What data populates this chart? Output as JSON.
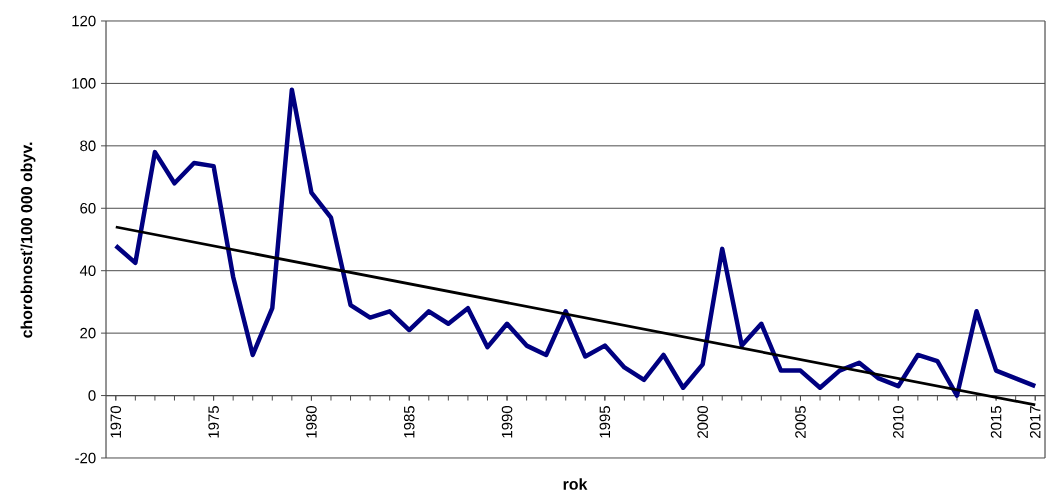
{
  "chart_data": {
    "type": "line",
    "xlabel": "rok",
    "ylabel": "chorobnosť/100 000 obyv.",
    "x": [
      1970,
      1971,
      1972,
      1973,
      1974,
      1975,
      1976,
      1977,
      1978,
      1979,
      1980,
      1981,
      1982,
      1983,
      1984,
      1985,
      1986,
      1987,
      1988,
      1989,
      1990,
      1991,
      1992,
      1993,
      1994,
      1995,
      1996,
      1997,
      1998,
      1999,
      2000,
      2001,
      2002,
      2003,
      2004,
      2005,
      2006,
      2007,
      2008,
      2009,
      2010,
      2011,
      2012,
      2013,
      2014,
      2015,
      2016,
      2017
    ],
    "series": [
      {
        "color": "#000080",
        "values": [
          48,
          42.5,
          78,
          68,
          74.5,
          73.5,
          38,
          13,
          28,
          98,
          65,
          57,
          29,
          25,
          27,
          21,
          27,
          23,
          28,
          15.5,
          23,
          16,
          13,
          27,
          12.5,
          16,
          9,
          5,
          13,
          2.5,
          10,
          47,
          16,
          23,
          8,
          8,
          2.5,
          8,
          10.5,
          5.5,
          3,
          13,
          11,
          0,
          27,
          8,
          5.5,
          3
        ]
      },
      {
        "type": "line",
        "color": "#000000",
        "x": [
          1970,
          2017
        ],
        "values": [
          54,
          -3
        ]
      }
    ],
    "xlim": [
      1969.5,
      2017.5
    ],
    "xticks": [
      1970,
      1975,
      1980,
      1985,
      1990,
      1995,
      2000,
      2005,
      2010,
      2015,
      2017
    ],
    "ylim": [
      -20,
      120
    ],
    "yticks": [
      -20,
      0,
      20,
      40,
      60,
      80,
      100,
      120
    ],
    "grid": "y",
    "marker": "none",
    "line_style": "solid"
  }
}
